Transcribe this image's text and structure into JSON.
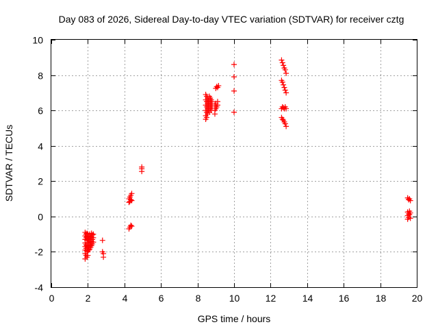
{
  "chart_data": {
    "type": "scatter",
    "title": "Day 083 of 2026, Sidereal Day-to-day VTEC variation (SDTVAR) for receiver cztg",
    "xlabel": "GPS time / hours",
    "ylabel": "SDTVAR / TECUs",
    "xlim": [
      0,
      20
    ],
    "ylim": [
      -4,
      10
    ],
    "xticks": [
      0,
      2,
      4,
      6,
      8,
      10,
      12,
      14,
      16,
      18,
      20
    ],
    "yticks": [
      -4,
      -2,
      0,
      2,
      4,
      6,
      8,
      10
    ],
    "grid": true,
    "marker": "+",
    "color": "#ff0000",
    "series": [
      {
        "name": "SDTVAR",
        "points": [
          [
            1.85,
            -0.9
          ],
          [
            1.85,
            -1.1
          ],
          [
            1.85,
            -1.3
          ],
          [
            1.85,
            -1.5
          ],
          [
            1.85,
            -1.7
          ],
          [
            1.85,
            -1.9
          ],
          [
            1.85,
            -2.1
          ],
          [
            1.85,
            -2.4
          ],
          [
            1.9,
            -1.0
          ],
          [
            1.9,
            -1.2
          ],
          [
            1.9,
            -1.6
          ],
          [
            1.9,
            -1.8
          ],
          [
            1.9,
            -2.2
          ],
          [
            1.95,
            -0.95
          ],
          [
            1.95,
            -1.15
          ],
          [
            1.95,
            -1.35
          ],
          [
            1.95,
            -1.65
          ],
          [
            1.95,
            -1.95
          ],
          [
            1.95,
            -2.3
          ],
          [
            2.0,
            -1.0
          ],
          [
            2.0,
            -1.25
          ],
          [
            2.0,
            -1.5
          ],
          [
            2.0,
            -1.75
          ],
          [
            2.0,
            -2.0
          ],
          [
            2.0,
            -2.2
          ],
          [
            2.05,
            -1.1
          ],
          [
            2.05,
            -1.4
          ],
          [
            2.05,
            -1.7
          ],
          [
            2.05,
            -1.9
          ],
          [
            2.1,
            -1.0
          ],
          [
            2.1,
            -1.3
          ],
          [
            2.1,
            -1.6
          ],
          [
            2.1,
            -1.85
          ],
          [
            2.15,
            -1.2
          ],
          [
            2.15,
            -1.45
          ],
          [
            2.15,
            -1.75
          ],
          [
            2.2,
            -0.95
          ],
          [
            2.2,
            -1.15
          ],
          [
            2.2,
            -1.4
          ],
          [
            2.2,
            -1.65
          ],
          [
            2.25,
            -1.05
          ],
          [
            2.25,
            -1.3
          ],
          [
            2.25,
            -1.55
          ],
          [
            2.3,
            -1.0
          ],
          [
            2.3,
            -1.2
          ],
          [
            2.3,
            -1.45
          ],
          [
            2.8,
            -1.35
          ],
          [
            2.8,
            -2.0
          ],
          [
            2.85,
            -2.1
          ],
          [
            2.85,
            -2.3
          ],
          [
            4.25,
            -0.7
          ],
          [
            4.3,
            -0.6
          ],
          [
            4.35,
            -0.5
          ],
          [
            4.4,
            -0.55
          ],
          [
            4.25,
            0.8
          ],
          [
            4.25,
            1.0
          ],
          [
            4.3,
            0.85
          ],
          [
            4.3,
            1.1
          ],
          [
            4.35,
            0.95
          ],
          [
            4.35,
            1.2
          ],
          [
            4.4,
            1.3
          ],
          [
            4.4,
            0.9
          ],
          [
            4.95,
            2.55
          ],
          [
            4.95,
            2.7
          ],
          [
            4.95,
            2.8
          ],
          [
            8.45,
            5.5
          ],
          [
            8.45,
            5.7
          ],
          [
            8.45,
            6.0
          ],
          [
            8.45,
            6.3
          ],
          [
            8.45,
            6.6
          ],
          [
            8.45,
            6.9
          ],
          [
            8.5,
            5.6
          ],
          [
            8.5,
            5.9
          ],
          [
            8.5,
            6.2
          ],
          [
            8.5,
            6.5
          ],
          [
            8.5,
            6.8
          ],
          [
            8.55,
            5.8
          ],
          [
            8.55,
            6.1
          ],
          [
            8.55,
            6.4
          ],
          [
            8.55,
            6.7
          ],
          [
            8.6,
            6.0
          ],
          [
            8.6,
            6.3
          ],
          [
            8.6,
            6.6
          ],
          [
            8.65,
            5.9
          ],
          [
            8.65,
            6.2
          ],
          [
            8.65,
            6.5
          ],
          [
            8.65,
            6.8
          ],
          [
            8.7,
            6.1
          ],
          [
            8.7,
            6.4
          ],
          [
            8.7,
            6.7
          ],
          [
            8.75,
            6.0
          ],
          [
            8.75,
            6.3
          ],
          [
            8.75,
            6.6
          ],
          [
            8.8,
            6.2
          ],
          [
            8.8,
            6.5
          ],
          [
            8.95,
            5.8
          ],
          [
            8.95,
            6.0
          ],
          [
            8.95,
            6.3
          ],
          [
            9.0,
            6.1
          ],
          [
            9.0,
            6.4
          ],
          [
            9.05,
            6.2
          ],
          [
            9.1,
            6.3
          ],
          [
            9.1,
            6.5
          ],
          [
            9.0,
            7.25
          ],
          [
            9.05,
            7.35
          ],
          [
            9.1,
            7.3
          ],
          [
            9.15,
            7.4
          ],
          [
            10.0,
            8.6
          ],
          [
            10.0,
            7.9
          ],
          [
            10.0,
            7.1
          ],
          [
            10.0,
            5.9
          ],
          [
            12.6,
            8.85
          ],
          [
            12.65,
            8.7
          ],
          [
            12.7,
            8.55
          ],
          [
            12.75,
            8.4
          ],
          [
            12.8,
            8.3
          ],
          [
            12.85,
            8.1
          ],
          [
            12.6,
            7.7
          ],
          [
            12.65,
            7.6
          ],
          [
            12.7,
            7.45
          ],
          [
            12.75,
            7.3
          ],
          [
            12.8,
            7.15
          ],
          [
            12.85,
            7.0
          ],
          [
            12.6,
            6.1
          ],
          [
            12.65,
            6.2
          ],
          [
            12.7,
            6.15
          ],
          [
            12.75,
            6.1
          ],
          [
            12.8,
            6.2
          ],
          [
            12.85,
            6.1
          ],
          [
            12.6,
            5.6
          ],
          [
            12.65,
            5.5
          ],
          [
            12.7,
            5.45
          ],
          [
            12.75,
            5.35
          ],
          [
            12.8,
            5.25
          ],
          [
            12.85,
            5.1
          ],
          [
            19.5,
            1.05
          ],
          [
            19.55,
            0.95
          ],
          [
            19.6,
            1.0
          ],
          [
            19.65,
            0.9
          ],
          [
            19.5,
            0.25
          ],
          [
            19.5,
            0.05
          ],
          [
            19.5,
            -0.15
          ],
          [
            19.55,
            0.15
          ],
          [
            19.55,
            -0.05
          ],
          [
            19.6,
            0.3
          ],
          [
            19.6,
            0.1
          ],
          [
            19.65,
            0.2
          ],
          [
            19.65,
            -0.1
          ]
        ]
      }
    ]
  }
}
